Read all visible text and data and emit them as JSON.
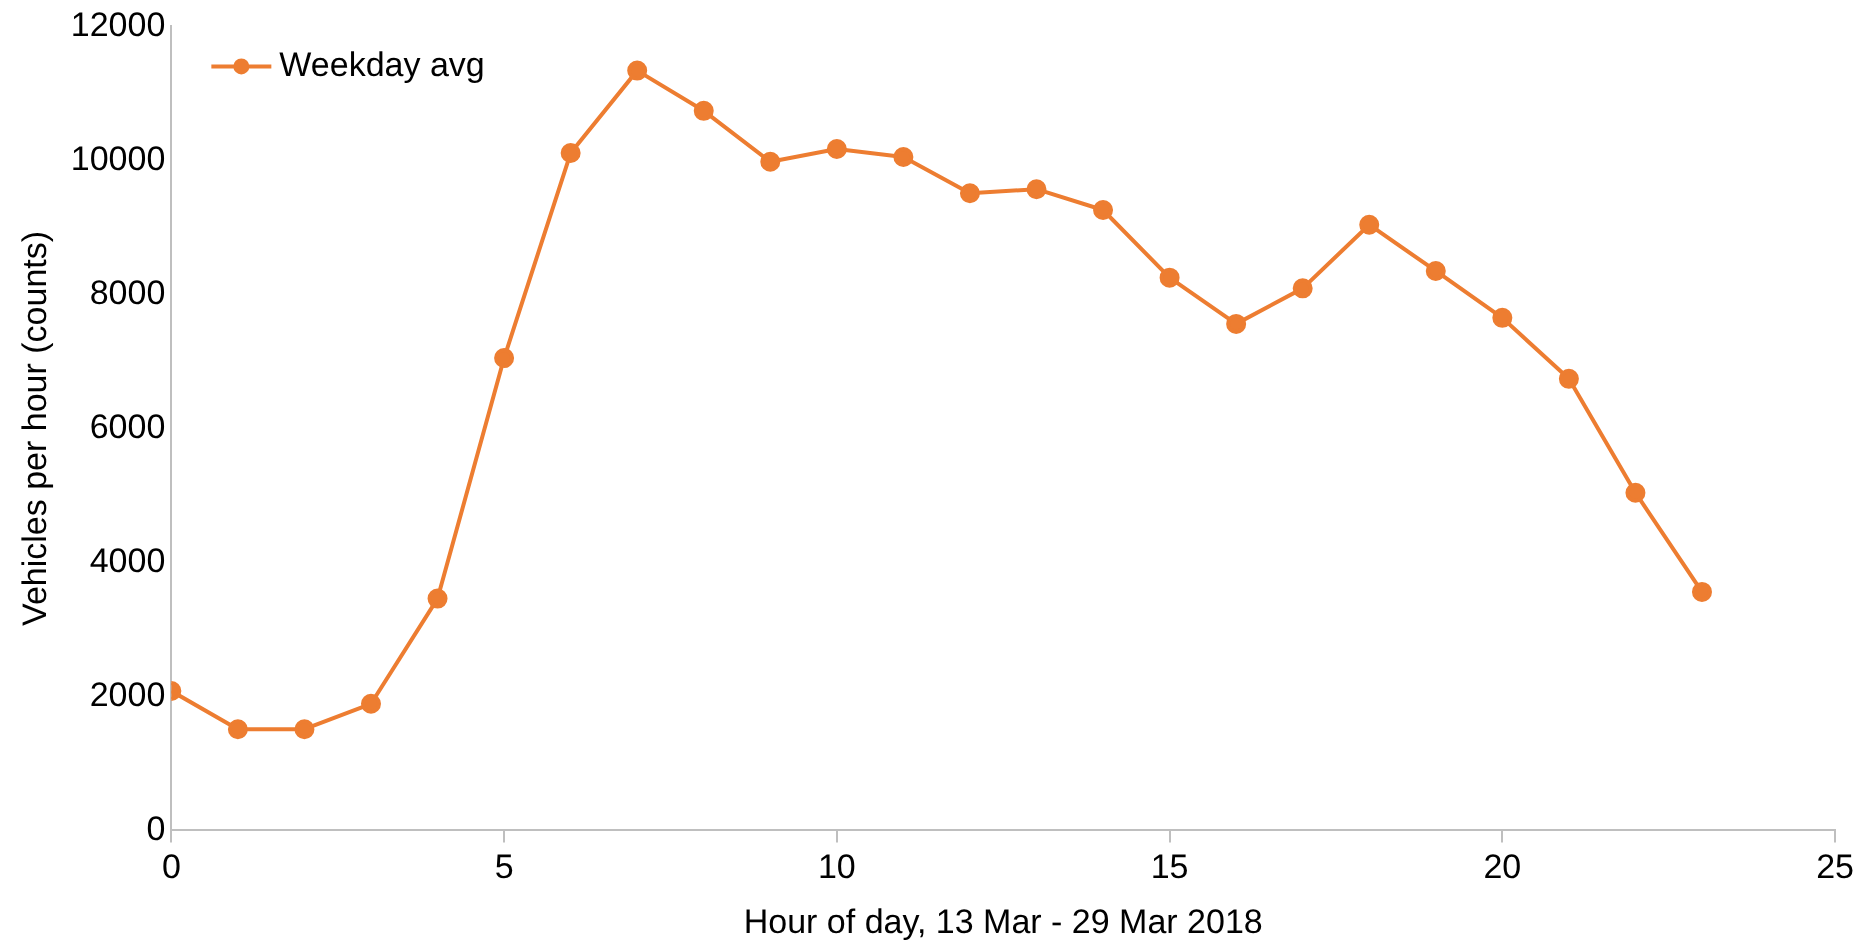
{
  "chart_data": {
    "type": "line",
    "xlabel": "Hour of day, 13 Mar - 29 Mar 2018",
    "ylabel": "Vehicles per hour (counts)",
    "x": [
      0,
      1,
      2,
      3,
      4,
      5,
      6,
      7,
      8,
      9,
      10,
      11,
      12,
      13,
      14,
      15,
      16,
      17,
      18,
      19,
      20,
      21,
      22,
      23
    ],
    "series": [
      {
        "name": "Weekday avg",
        "color": "#ed7d31",
        "values": [
          2080,
          1510,
          1510,
          1890,
          3460,
          7050,
          10110,
          11340,
          10740,
          9980,
          10170,
          10050,
          9510,
          9570,
          9260,
          8250,
          7560,
          8090,
          9040,
          8350,
          7650,
          6740,
          5040,
          3560
        ]
      }
    ],
    "xlim": [
      0,
      25
    ],
    "xticks": [
      0,
      5,
      10,
      15,
      20,
      25
    ],
    "ylim": [
      0,
      12000
    ],
    "yticks": [
      0,
      2000,
      4000,
      6000,
      8000,
      10000,
      12000
    ],
    "grid": false,
    "legend": "top left",
    "marker": "circle",
    "line_style": "solid"
  }
}
